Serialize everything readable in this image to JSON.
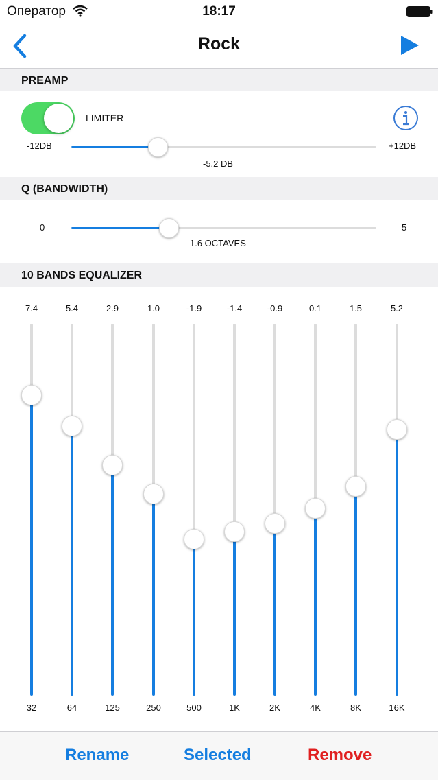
{
  "status_bar": {
    "carrier": "Оператор",
    "time": "18:17"
  },
  "nav": {
    "title": "Rock",
    "back_icon": "chevron-left-icon",
    "play_icon": "play-icon"
  },
  "preamp": {
    "header": "PREAMP",
    "limiter_label": "LIMITER",
    "limiter_on": true,
    "min_label": "-12DB",
    "max_label": "+12DB",
    "value_label": "-5.2 DB",
    "value": -5.2,
    "min": -12,
    "max": 12
  },
  "q": {
    "header": "Q (BANDWIDTH)",
    "min_label": "0",
    "max_label": "5",
    "value_label": "1.6 OCTAVES",
    "value": 1.6,
    "min": 0,
    "max": 5
  },
  "eq": {
    "header": "10 BANDS EQUALIZER",
    "bands": [
      {
        "freq": "32",
        "value": "7.4"
      },
      {
        "freq": "64",
        "value": "5.4"
      },
      {
        "freq": "125",
        "value": "2.9"
      },
      {
        "freq": "250",
        "value": "1.0"
      },
      {
        "freq": "500",
        "value": "-1.9"
      },
      {
        "freq": "1K",
        "value": "-1.4"
      },
      {
        "freq": "2K",
        "value": "-0.9"
      },
      {
        "freq": "4K",
        "value": "0.1"
      },
      {
        "freq": "8K",
        "value": "1.5"
      },
      {
        "freq": "16K",
        "value": "5.2"
      }
    ]
  },
  "toolbar": {
    "rename": "Rename",
    "selected": "Selected",
    "remove": "Remove"
  },
  "colors": {
    "accent": "#157ee0",
    "toggle_on": "#4cd964",
    "destructive": "#e02020"
  }
}
